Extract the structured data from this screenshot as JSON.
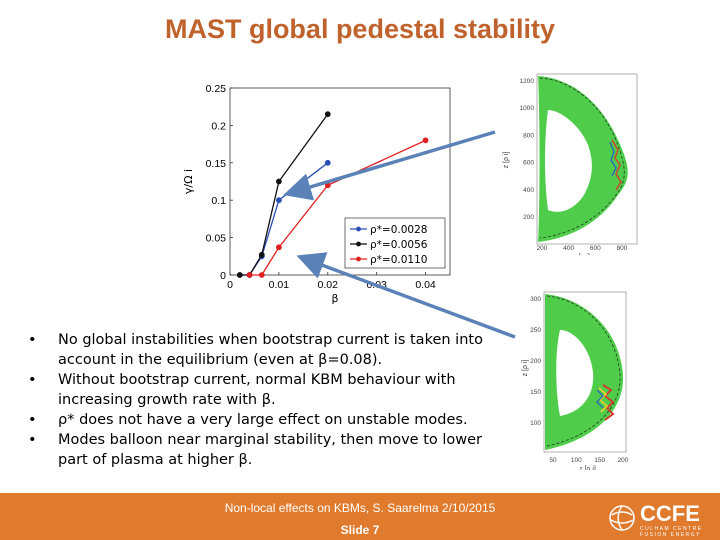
{
  "slide": {
    "title": "MAST global pedestal stability",
    "bullets": [
      "No global instabilities when bootstrap current is taken into account in the equilibrium (even at β=0.08).",
      "Without bootstrap current, normal KBM behaviour with increasing growth rate with β.",
      "ρ* does not have a very large effect on unstable modes.",
      "Modes balloon near marginal stability, then move to lower part of plasma at higher β."
    ],
    "bullet_char": "•",
    "footer": "Non-local effects on KBMs, S. Saarelma 2/10/2015",
    "slide_number": "Slide 7",
    "logo": "CCFE",
    "logo_subtitle": "CULHAM CENTRE FUSION ENERGY"
  },
  "colors": {
    "title": "#c0622c",
    "footer_bg": "#e07a2d",
    "series_blue": "#2b4fb5",
    "series_black": "#111111",
    "series_red": "#e02020",
    "arrow": "#5b82b8"
  },
  "chart_data": {
    "type": "line",
    "xlabel": "β",
    "ylabel": "γ/Ω i",
    "xlim": [
      0,
      0.045
    ],
    "ylim": [
      0,
      0.25
    ],
    "xticks": [
      "0",
      "0.01",
      "0.02",
      "0.03",
      "0.04"
    ],
    "yticks": [
      "0",
      "0.05",
      "0.1",
      "0.15",
      "0.2",
      "0.25"
    ],
    "legend_position": "lower-right",
    "series": [
      {
        "name": "ρ*=0.0028",
        "color": "#2b4fb5",
        "x": [
          0.002,
          0.004,
          0.0065,
          0.01,
          0.02
        ],
        "y": [
          0,
          0,
          0.025,
          0.1,
          0.15
        ]
      },
      {
        "name": "ρ*=0.0056",
        "color": "#111111",
        "x": [
          0.002,
          0.004,
          0.0065,
          0.01,
          0.02
        ],
        "y": [
          0,
          0,
          0.027,
          0.125,
          0.215
        ]
      },
      {
        "name": "ρ*=0.0110",
        "color": "#e02020",
        "x": [
          0.004,
          0.0065,
          0.01,
          0.02,
          0.04
        ],
        "y": [
          0,
          0,
          0.037,
          0.12,
          0.18
        ]
      }
    ]
  },
  "mode_plots": {
    "top": {
      "ylabel": "z [ρ i]",
      "xlabel": "r [ρ i]",
      "yticks": [
        "1200",
        "1000",
        "800",
        "600",
        "400",
        "200"
      ],
      "xticks": [
        "200",
        "400",
        "600",
        "800"
      ]
    },
    "bottom": {
      "ylabel": "z [ρ i]",
      "xlabel": "r [ρ i]",
      "yticks": [
        "300",
        "250",
        "200",
        "150",
        "100"
      ],
      "xticks": [
        "50",
        "100",
        "150",
        "200"
      ]
    }
  }
}
